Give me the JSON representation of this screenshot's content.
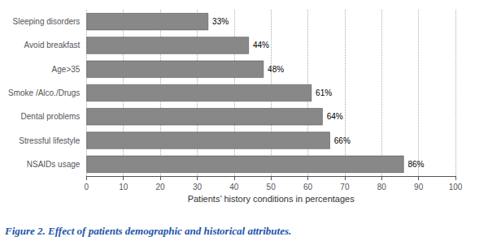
{
  "chart_data": {
    "type": "bar",
    "orientation": "horizontal",
    "categories": [
      "NSAIDs usage",
      "Stressful lifestyle",
      "Dental problems",
      "Smoke /Alco./Drugs",
      "Age>35",
      "Avoid breakfast",
      "Sleeping disorders"
    ],
    "values": [
      86,
      66,
      64,
      61,
      48,
      44,
      33
    ],
    "value_labels": [
      "86%",
      "66%",
      "64%",
      "61%",
      "48%",
      "44%",
      "33%"
    ],
    "data_labels": true,
    "color": "#888888",
    "xlabel": "Patients’ history conditions in percentages",
    "xlim": [
      0,
      100
    ],
    "xticks": [
      0,
      10,
      20,
      30,
      40,
      50,
      60,
      70,
      80,
      90,
      100
    ],
    "grid": true,
    "caption": "Figure 2. Effect of patients demographic and historical attributes."
  }
}
